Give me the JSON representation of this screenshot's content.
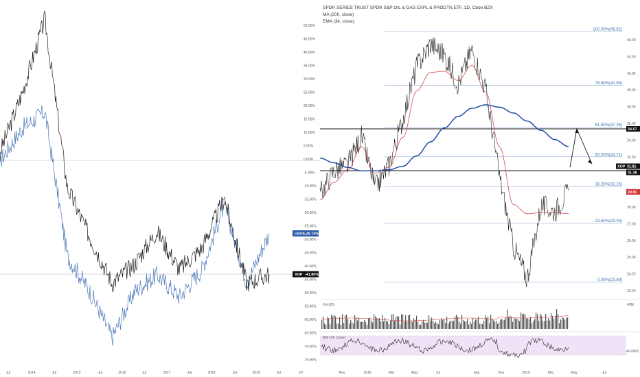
{
  "colors": {
    "black_series": "#1a1a1a",
    "blue_series": "#4a78b8",
    "ma200": "#1f4aa8",
    "ema34": "#d24a4a",
    "fib_line": "#7a9ccc",
    "rsi_band": "#f1e3f7",
    "vol_bar": "#555555"
  },
  "left_chart": {
    "x_ticks": [
      "Jul",
      "2014",
      "Jul",
      "2015",
      "Jul",
      "2016",
      "Jul",
      "2017",
      "Jul",
      "2018",
      "Jul",
      "2019",
      "Jul",
      "20"
    ],
    "y_ticks": [
      "50.00%",
      "45.00%",
      "40.00%",
      "35.00%",
      "30.00%",
      "25.00%",
      "20.00%",
      "15.00%",
      "10.00%",
      "5.00%",
      "0.00%",
      "-5.00%",
      "-10.00%",
      "-15.00%",
      "-20.00%",
      "-25.00%",
      "-30.00%",
      "-35.00%",
      "-40.00%",
      "-45.00%",
      "-50.00%",
      "-55.00%",
      "-60.00%",
      "-65.00%",
      "-70.00%",
      "-75.00%"
    ],
    "usol_label": "USOIL",
    "usol_value": "-26.74%",
    "xop_label": "XOP",
    "xop_value": "-41.86%"
  },
  "right_chart": {
    "title": "SPDR SERIES TRUST SPDR S&P OIL & GAS EXPL & PRODTN ETF, 1D, Cboe BZX",
    "legend_ma": "MA (200, close)",
    "legend_ema": "EMA (34, close)",
    "x_ticks": [
      "Nov",
      "2018",
      "Mar",
      "May",
      "Jul",
      "Sep",
      "Nov",
      "2019",
      "Mar",
      "May",
      "Jul"
    ],
    "y_ticks": [
      "46.00",
      "44.00",
      "42.00",
      "40.00",
      "38.00",
      "36.00",
      "34.00",
      "32.50",
      "31.00",
      "29.00",
      "28.00",
      "27.00",
      "26.00",
      "25.00",
      "24.20",
      "23.40"
    ],
    "fib_levels": [
      {
        "label": "100.00%(45.52)",
        "value": 45.52
      },
      {
        "label": "78.60%(40.89)",
        "value": 40.89
      },
      {
        "label": "61.80%(37.26)",
        "value": 37.26
      },
      {
        "label": "50.00%(34.71)",
        "value": 34.71
      },
      {
        "label": "38.20%(32.15)",
        "value": 32.15
      },
      {
        "label": "23.60%(29.00)",
        "value": 29.0
      },
      {
        "label": "0.00%(23.89)",
        "value": 23.89
      }
    ],
    "price_labels": {
      "target": "34.57",
      "xop_tag": "XOP",
      "xop_price": "31.81",
      "support": "31.38",
      "ema_value": "29.81"
    },
    "volume": {
      "title": "Vol (20)",
      "axis_label": "40M"
    },
    "rsi": {
      "title": "RSI (14, close)",
      "axis_label": "40.0000"
    }
  },
  "chart_data": [
    {
      "type": "line",
      "title": "",
      "x": [
        "2013-06",
        "2014-01",
        "2014-07",
        "2015-01",
        "2015-07",
        "2016-01",
        "2016-07",
        "2017-01",
        "2017-07",
        "2018-01",
        "2018-07",
        "2019-01",
        "2019-04"
      ],
      "series": [
        {
          "name": "XOP",
          "values": [
            3,
            25,
            52,
            -10,
            -28,
            -45,
            -38,
            -26,
            -40,
            -32,
            -14,
            -45,
            -41.86
          ]
        },
        {
          "name": "USOIL",
          "values": [
            0,
            12,
            18,
            -35,
            -48,
            -65,
            -48,
            -42,
            -50,
            -40,
            -16,
            -45,
            -26.74
          ]
        }
      ],
      "ylim": [
        -75,
        50
      ],
      "ylabel": "",
      "xlabel": ""
    },
    {
      "type": "line",
      "title": "SPDR SERIES TRUST SPDR S&P OIL & GAS EXPL & PRODTN ETF, 1D, Cboe BZX",
      "x": [
        "2017-10",
        "2017-11",
        "2017-12",
        "2018-01",
        "2018-02",
        "2018-03",
        "2018-04",
        "2018-05",
        "2018-06",
        "2018-07",
        "2018-08",
        "2018-09",
        "2018-10",
        "2018-11",
        "2018-12",
        "2019-01",
        "2019-02",
        "2019-03",
        "2019-04"
      ],
      "series": [
        {
          "name": "XOP",
          "values": [
            31.5,
            33.5,
            34.0,
            36.5,
            32.0,
            34.0,
            38.0,
            42.5,
            44.5,
            43.5,
            41.0,
            44.0,
            40.5,
            33.0,
            27.0,
            24.2,
            30.5,
            30.0,
            31.81
          ]
        },
        {
          "name": "MA (200, close)",
          "values": [
            34.6,
            34.2,
            33.8,
            33.5,
            33.5,
            33.6,
            33.9,
            34.8,
            36.0,
            37.2,
            38.2,
            38.9,
            39.2,
            39.0,
            38.5,
            37.8,
            37.0,
            36.2,
            35.6
          ]
        },
        {
          "name": "EMA (34, close)",
          "values": [
            31.0,
            32.5,
            33.6,
            35.6,
            33.3,
            33.8,
            36.4,
            40.4,
            42.0,
            42.1,
            41.3,
            42.6,
            40.3,
            35.6,
            30.6,
            29.8,
            29.9,
            29.9,
            29.81
          ]
        }
      ],
      "ylim": [
        23.4,
        46.0
      ],
      "fib_levels": [
        45.52,
        40.89,
        37.26,
        34.71,
        32.15,
        29.0,
        23.89
      ]
    }
  ]
}
